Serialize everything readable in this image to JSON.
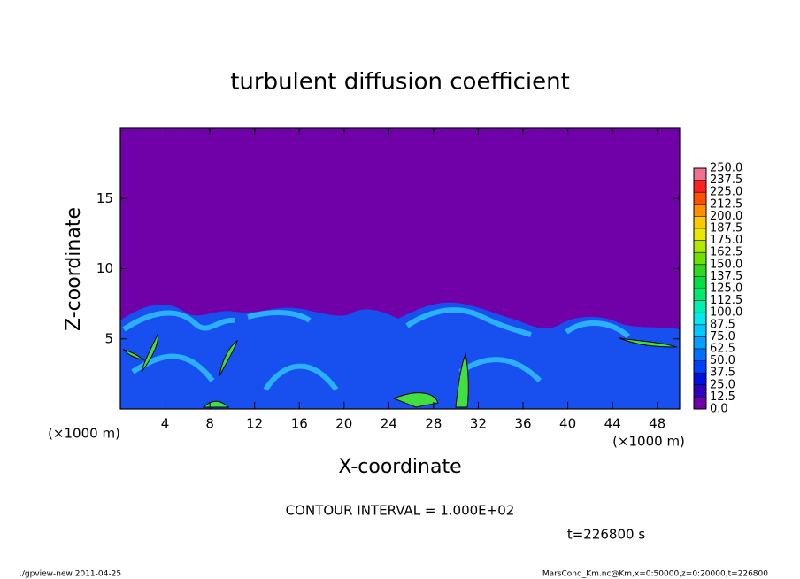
{
  "chart_data": {
    "type": "heatmap",
    "title": "turbulent diffusion coefficient",
    "xlabel": "X-coordinate",
    "ylabel": "Z-coordinate",
    "x_unit": "(×1000 m)",
    "y_unit": "(×1000 m)",
    "xlim": [
      0,
      50
    ],
    "ylim": [
      0,
      20
    ],
    "xticks": [
      4,
      8,
      12,
      16,
      20,
      24,
      28,
      32,
      36,
      40,
      44,
      48
    ],
    "yticks": [
      5,
      10,
      15
    ],
    "colorbar": {
      "levels": [
        {
          "value": 0,
          "label": "0.0"
        },
        {
          "value": 12.5,
          "label": "12.5"
        },
        {
          "value": 25,
          "label": "25.0"
        },
        {
          "value": 37.5,
          "label": "37.5"
        },
        {
          "value": 50,
          "label": "50.0"
        },
        {
          "value": 62.5,
          "label": "62.5"
        },
        {
          "value": 75,
          "label": "75.0"
        },
        {
          "value": 87.5,
          "label": "87.5"
        },
        {
          "value": 100,
          "label": "100.0"
        },
        {
          "value": 112.5,
          "label": "112.5"
        },
        {
          "value": 125,
          "label": "125.0"
        },
        {
          "value": 137.5,
          "label": "137.5"
        },
        {
          "value": 150,
          "label": "150.0"
        },
        {
          "value": 162.5,
          "label": "162.5"
        },
        {
          "value": 175,
          "label": "175.0"
        },
        {
          "value": 187.5,
          "label": "187.5"
        },
        {
          "value": 200,
          "label": "200.0"
        },
        {
          "value": 212.5,
          "label": "212.5"
        },
        {
          "value": 225,
          "label": "225.0"
        },
        {
          "value": 237.5,
          "label": "237.5"
        },
        {
          "value": 250,
          "label": "250.0"
        }
      ],
      "colors": [
        "#7000a8",
        "#3000c0",
        "#0010e0",
        "#0040ff",
        "#0070ff",
        "#00a0ff",
        "#00c8ff",
        "#00e8f0",
        "#00f0b0",
        "#00e870",
        "#00e040",
        "#30d820",
        "#70e000",
        "#b0e800",
        "#e8e800",
        "#ffc800",
        "#ff9000",
        "#ff5000",
        "#ff2020",
        "#f07090"
      ]
    },
    "annotation": "CONTOUR INTERVAL = 1.000E+02",
    "time_label": "t=226800 s",
    "footer_left": "./gpview-new  2011-04-25",
    "footer_right": "MarsCond_Km.nc@Km,x=0:50000,z=0:20000,t=226800"
  }
}
